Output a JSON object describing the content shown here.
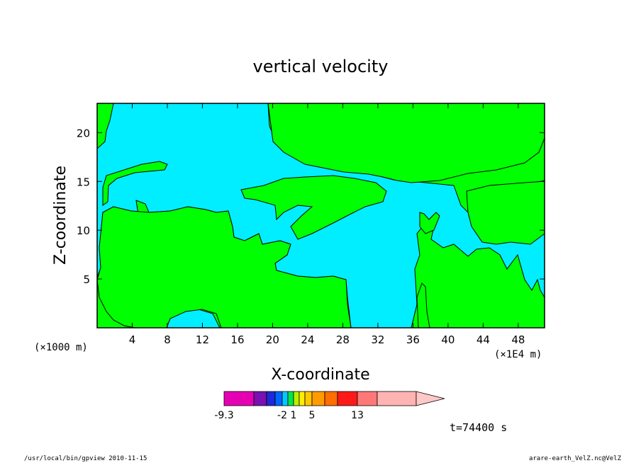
{
  "chart_data": {
    "type": "heatmap",
    "title": "vertical velocity",
    "xlabel": "X-coordinate",
    "ylabel": "Z-coordinate",
    "x_unit_left": "(×1000 m)",
    "x_unit_right": "(×1E4 m)",
    "xlim": [
      0,
      51
    ],
    "ylim": [
      0,
      23
    ],
    "x_ticks": [
      4,
      8,
      12,
      16,
      20,
      24,
      28,
      32,
      36,
      40,
      44,
      48
    ],
    "y_ticks": [
      5,
      10,
      15,
      20
    ],
    "fields": {
      "green": "#00ff00",
      "cyan": "#00eeff"
    },
    "colorbar": {
      "colors": [
        "#e600b4",
        "#7a10b0",
        "#1e28d8",
        "#0064ff",
        "#00c8ff",
        "#00e650",
        "#b4f000",
        "#ffee00",
        "#ffc800",
        "#ff9b00",
        "#ff6e00",
        "#ff1a1a",
        "#ff7878",
        "#ffb4b4",
        "#ffc8c8"
      ],
      "labels": [
        {
          "text": "-9.3",
          "index": 0
        },
        {
          "text": "-2",
          "index": 4
        },
        {
          "text": "1",
          "index": 6
        },
        {
          "text": "5",
          "index": 9
        },
        {
          "text": "13",
          "index": 12
        }
      ]
    },
    "time_label": "t=74400 s",
    "footer_left": "/usr/local/bin/gpview  2010-11-15",
    "footer_right": "arare-earth_VelZ.nc@VelZ"
  }
}
